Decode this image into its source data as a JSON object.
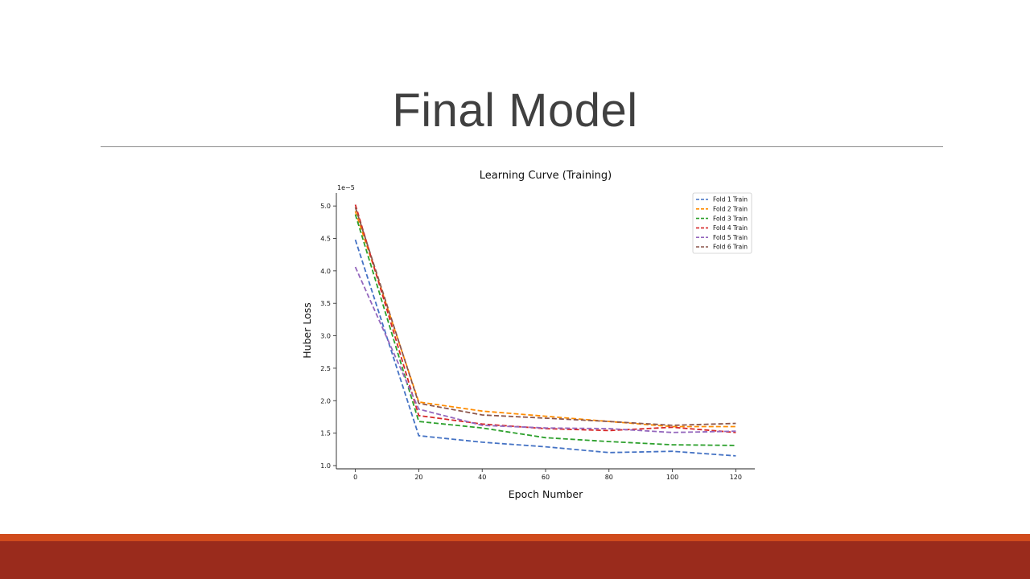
{
  "slide": {
    "title": "Final Model"
  },
  "colors": {
    "title_text": "#404040",
    "rule": "#8c8c8c",
    "footer_accent": "#d04b1c",
    "footer_bar": "#9a2b1c"
  },
  "chart_data": {
    "type": "line",
    "title": "Learning Curve (Training)",
    "xlabel": "Epoch Number",
    "ylabel": "Huber Loss",
    "y_offset_label": "1e−5",
    "xlim": [
      -6,
      126
    ],
    "ylim": [
      0.95,
      5.2
    ],
    "x_ticks": [
      0,
      20,
      40,
      60,
      80,
      100,
      120
    ],
    "y_ticks": [
      "1.0",
      "1.5",
      "2.0",
      "2.5",
      "3.0",
      "3.5",
      "4.0",
      "4.5",
      "5.0"
    ],
    "x": [
      0,
      20,
      40,
      60,
      80,
      100,
      120
    ],
    "legend_position": "top-right",
    "line_style": "dashed",
    "grid": false,
    "series": [
      {
        "name": "Fold 1 Train",
        "color": "#4472c4",
        "values": [
          4.48,
          1.46,
          1.36,
          1.29,
          1.2,
          1.22,
          1.15
        ]
      },
      {
        "name": "Fold 2 Train",
        "color": "#ff8c00",
        "values": [
          4.92,
          1.98,
          1.84,
          1.76,
          1.68,
          1.6,
          1.6
        ]
      },
      {
        "name": "Fold 3 Train",
        "color": "#2ca02c",
        "values": [
          4.87,
          1.68,
          1.58,
          1.43,
          1.37,
          1.32,
          1.31
        ]
      },
      {
        "name": "Fold 4 Train",
        "color": "#d62728",
        "values": [
          5.02,
          1.77,
          1.64,
          1.57,
          1.54,
          1.59,
          1.51
        ]
      },
      {
        "name": "Fold 5 Train",
        "color": "#9467bd",
        "values": [
          4.06,
          1.87,
          1.62,
          1.58,
          1.57,
          1.51,
          1.53
        ]
      },
      {
        "name": "Fold 6 Train",
        "color": "#8c564b",
        "values": [
          4.98,
          1.96,
          1.78,
          1.73,
          1.68,
          1.62,
          1.65
        ]
      }
    ]
  }
}
